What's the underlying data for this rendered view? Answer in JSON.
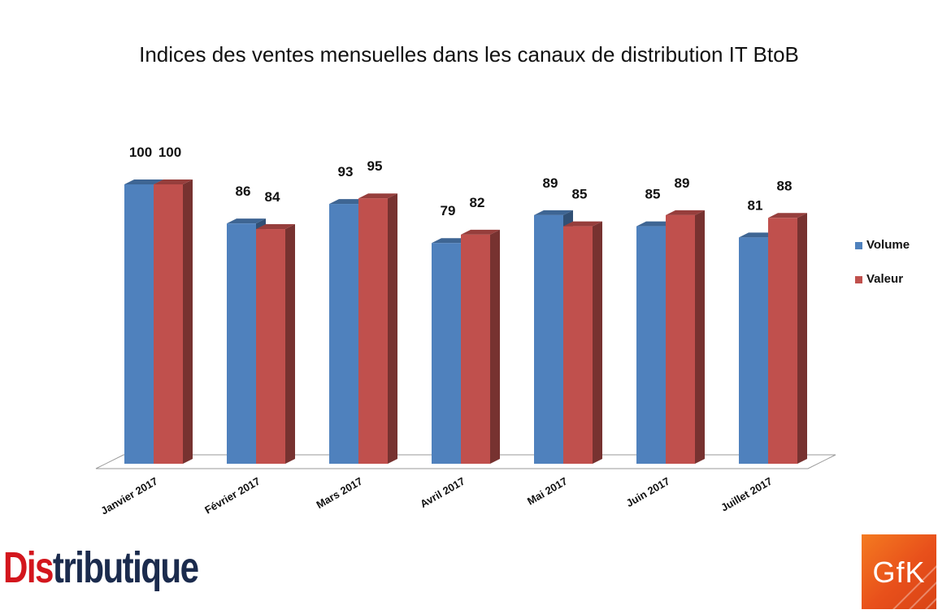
{
  "chart_data": {
    "type": "bar",
    "title": "Indices des ventes mensuelles dans les canaux de distribution IT BtoB",
    "categories": [
      "Janvier 2017",
      "Février 2017",
      "Mars 2017",
      "Avril 2017",
      "Mai 2017",
      "Juin 2017",
      "Juillet 2017"
    ],
    "series": [
      {
        "name": "Volume",
        "values": [
          100,
          86,
          93,
          79,
          89,
          85,
          81
        ],
        "color": "#4f81bd"
      },
      {
        "name": "Valeur",
        "values": [
          100,
          84,
          95,
          82,
          85,
          89,
          88
        ],
        "color": "#c0504d"
      }
    ],
    "ylim": [
      0,
      100
    ],
    "grid": false,
    "legend_position": "right",
    "style": "3d-clustered-column"
  },
  "logos": {
    "distributique": {
      "part1": "Dis",
      "part2": "tributique"
    },
    "gfk": "GfK"
  }
}
